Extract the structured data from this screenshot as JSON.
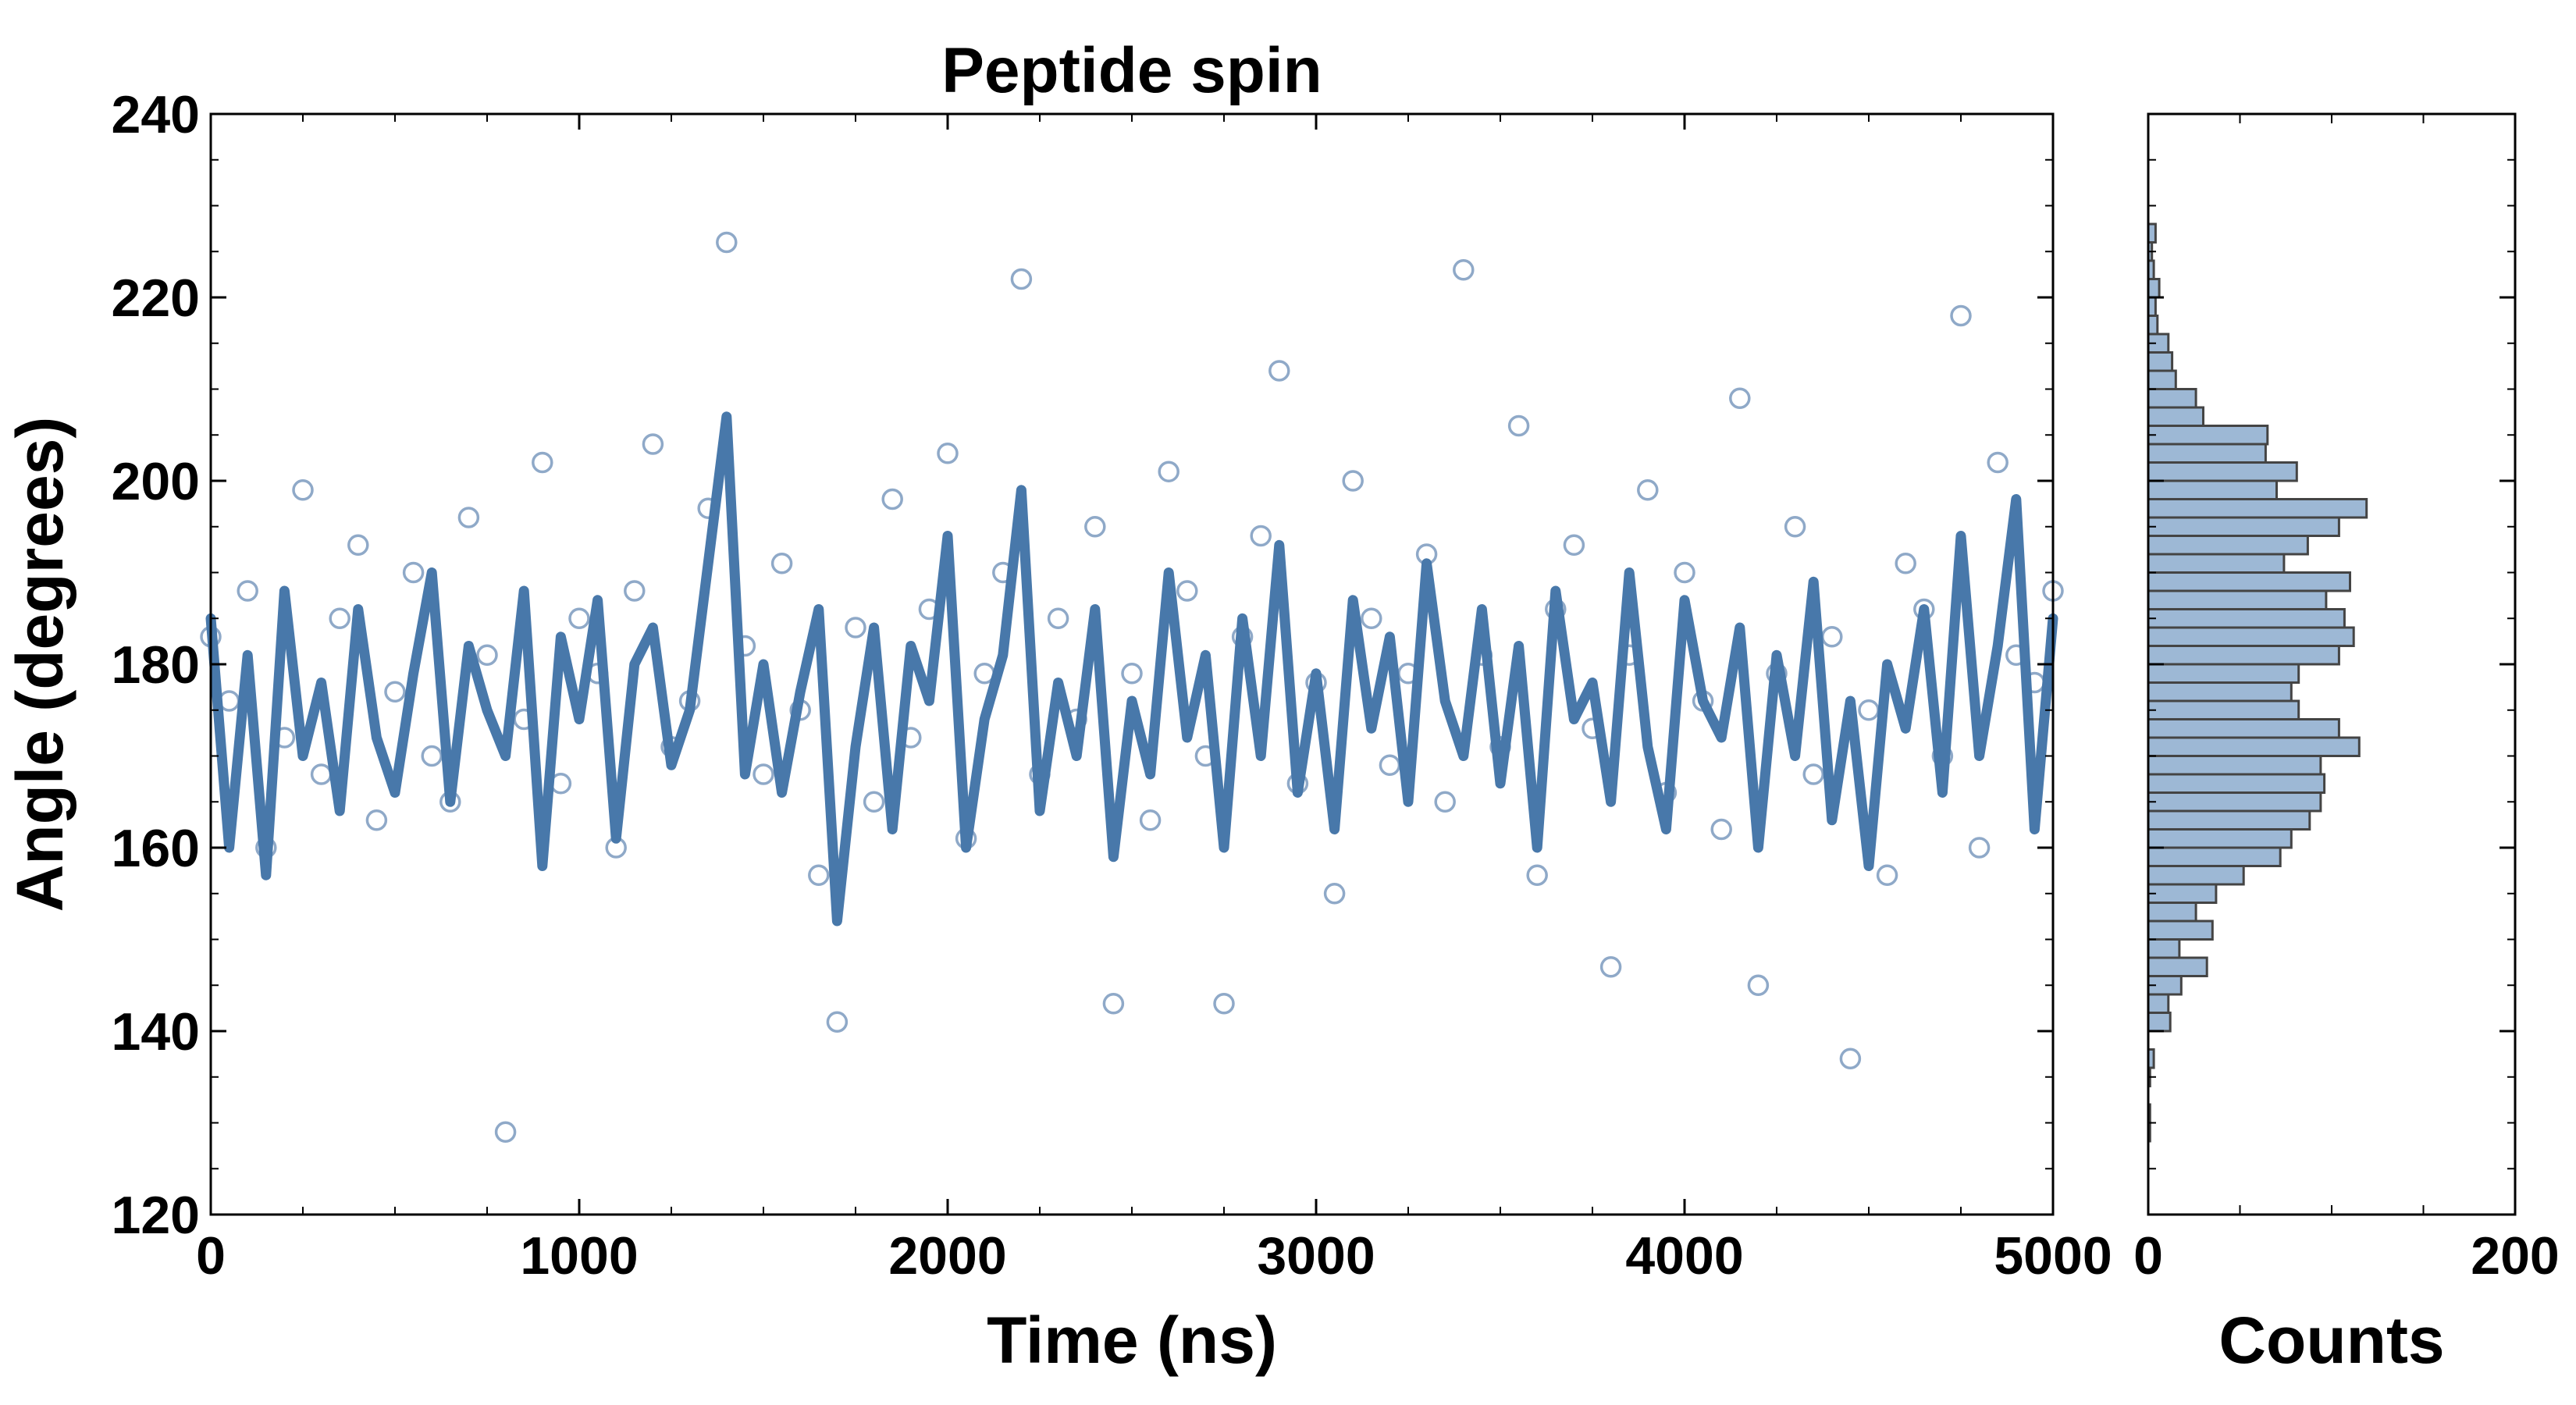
{
  "chart_data": [
    {
      "type": "scatter",
      "title": "Peptide spin",
      "xlabel": "Time (ns)",
      "ylabel": "Angle (degrees)",
      "xlim": [
        0,
        5000
      ],
      "ylim": [
        120,
        240
      ],
      "x_ticks": [
        "0",
        "1000",
        "2000",
        "3000",
        "4000",
        "5000"
      ],
      "y_ticks": [
        "120",
        "140",
        "160",
        "180",
        "200",
        "220",
        "240"
      ],
      "grid": false,
      "series": [
        {
          "kind": "scatter",
          "marker": "open-circle",
          "color": "#8fa9c8",
          "x": [
            0,
            50,
            100,
            150,
            200,
            250,
            300,
            350,
            400,
            450,
            500,
            550,
            600,
            650,
            700,
            750,
            800,
            850,
            900,
            950,
            1000,
            1050,
            1100,
            1150,
            1200,
            1250,
            1300,
            1350,
            1400,
            1450,
            1500,
            1550,
            1600,
            1650,
            1700,
            1750,
            1800,
            1850,
            1900,
            1950,
            2000,
            2050,
            2100,
            2150,
            2200,
            2250,
            2300,
            2350,
            2400,
            2450,
            2500,
            2550,
            2600,
            2650,
            2700,
            2750,
            2800,
            2850,
            2900,
            2950,
            3000,
            3050,
            3100,
            3150,
            3200,
            3250,
            3300,
            3350,
            3400,
            3450,
            3500,
            3550,
            3600,
            3650,
            3700,
            3750,
            3800,
            3850,
            3900,
            3950,
            4000,
            4050,
            4100,
            4150,
            4200,
            4250,
            4300,
            4350,
            4400,
            4450,
            4500,
            4550,
            4600,
            4650,
            4700,
            4750,
            4800,
            4850,
            4900,
            4950,
            5000
          ],
          "y": [
            183,
            176,
            188,
            160,
            172,
            199,
            168,
            185,
            193,
            163,
            177,
            190,
            170,
            165,
            196,
            181,
            129,
            174,
            202,
            167,
            185,
            179,
            160,
            188,
            204,
            171,
            176,
            197,
            226,
            182,
            168,
            191,
            175,
            157,
            141,
            184,
            165,
            198,
            172,
            186,
            203,
            161,
            179,
            190,
            222,
            168,
            185,
            174,
            195,
            143,
            179,
            163,
            201,
            188,
            170,
            143,
            183,
            194,
            212,
            167,
            178,
            155,
            200,
            185,
            169,
            179,
            192,
            165,
            223,
            181,
            171,
            206,
            157,
            186,
            193,
            173,
            147,
            181,
            199,
            166,
            190,
            176,
            162,
            209,
            145,
            179,
            195,
            168,
            183,
            137,
            175,
            157,
            191,
            186,
            170,
            218,
            160,
            202,
            181,
            178,
            188
          ]
        },
        {
          "kind": "line",
          "name": "",
          "color": "#4878aa",
          "x": [
            0,
            50,
            100,
            150,
            200,
            250,
            300,
            350,
            400,
            450,
            500,
            550,
            600,
            650,
            700,
            750,
            800,
            850,
            900,
            950,
            1000,
            1050,
            1100,
            1150,
            1200,
            1250,
            1300,
            1350,
            1400,
            1450,
            1500,
            1550,
            1600,
            1650,
            1700,
            1750,
            1800,
            1850,
            1900,
            1950,
            2000,
            2050,
            2100,
            2150,
            2200,
            2250,
            2300,
            2350,
            2400,
            2450,
            2500,
            2550,
            2600,
            2650,
            2700,
            2750,
            2800,
            2850,
            2900,
            2950,
            3000,
            3050,
            3100,
            3150,
            3200,
            3250,
            3300,
            3350,
            3400,
            3450,
            3500,
            3550,
            3600,
            3650,
            3700,
            3750,
            3800,
            3850,
            3900,
            3950,
            4000,
            4050,
            4100,
            4150,
            4200,
            4250,
            4300,
            4350,
            4400,
            4450,
            4500,
            4550,
            4600,
            4650,
            4700,
            4750,
            4800,
            4850,
            4900,
            4950,
            5000
          ],
          "y": [
            185,
            160,
            181,
            157,
            188,
            170,
            178,
            164,
            186,
            172,
            166,
            179,
            190,
            165,
            182,
            175,
            170,
            188,
            158,
            183,
            174,
            187,
            161,
            180,
            184,
            169,
            175,
            191,
            207,
            168,
            180,
            166,
            177,
            186,
            152,
            171,
            184,
            162,
            182,
            176,
            194,
            160,
            174,
            181,
            199,
            164,
            178,
            170,
            186,
            159,
            176,
            168,
            190,
            172,
            181,
            160,
            185,
            170,
            193,
            166,
            179,
            162,
            187,
            173,
            183,
            165,
            191,
            176,
            170,
            186,
            167,
            182,
            160,
            188,
            174,
            178,
            165,
            190,
            171,
            162,
            187,
            176,
            172,
            184,
            160,
            181,
            170,
            189,
            163,
            176,
            158,
            180,
            173,
            186,
            166,
            194,
            170,
            182,
            198,
            162,
            185
          ]
        }
      ]
    },
    {
      "type": "bar",
      "orientation": "horizontal",
      "title": "",
      "xlabel": "Counts",
      "ylabel": "",
      "xlim": [
        0,
        200
      ],
      "ylim": [
        120,
        240
      ],
      "x_ticks": [
        "0",
        "200"
      ],
      "color": "#9db8d5",
      "edge_color": "#444444",
      "bin_width": 2,
      "bins_start": [
        128,
        130,
        132,
        134,
        136,
        138,
        140,
        142,
        144,
        146,
        148,
        150,
        152,
        154,
        156,
        158,
        160,
        162,
        164,
        166,
        168,
        170,
        172,
        174,
        176,
        178,
        180,
        182,
        184,
        186,
        188,
        190,
        192,
        194,
        196,
        198,
        200,
        202,
        204,
        206,
        208,
        210,
        212,
        214,
        216,
        218,
        220,
        222,
        224,
        226
      ],
      "values": [
        1,
        1,
        0,
        1,
        3,
        0,
        12,
        11,
        18,
        32,
        17,
        35,
        26,
        37,
        52,
        72,
        78,
        88,
        94,
        96,
        94,
        115,
        104,
        82,
        78,
        82,
        104,
        112,
        107,
        97,
        110,
        74,
        87,
        104,
        119,
        70,
        81,
        64,
        65,
        30,
        26,
        15,
        13,
        11,
        5,
        4,
        6,
        3,
        2,
        4
      ]
    }
  ]
}
